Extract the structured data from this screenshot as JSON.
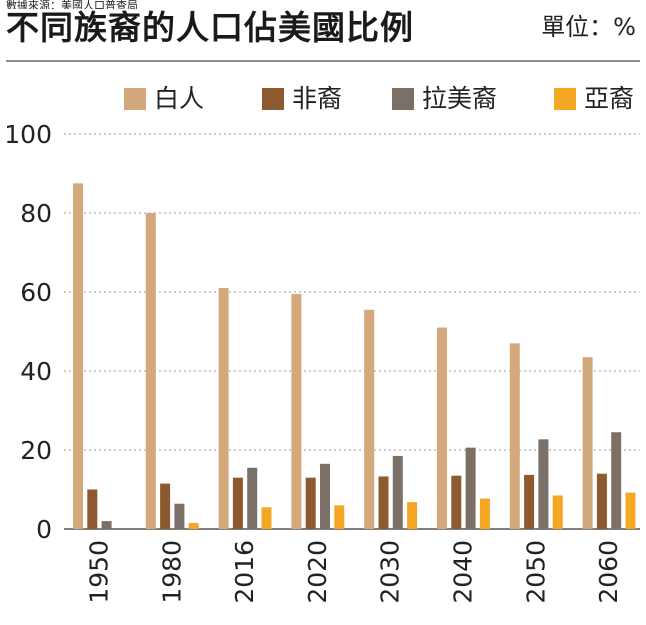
{
  "header": {
    "top_note": "數據來源：美國人口普查局",
    "title": "不同族裔的人口佔美國比例",
    "unit": "單位：%"
  },
  "chart_data": {
    "type": "bar",
    "title": "不同族裔的人口佔美國比例",
    "unit": "單位：%",
    "categories": [
      "1950",
      "1980",
      "2016",
      "2020",
      "2030",
      "2040",
      "2050",
      "2060"
    ],
    "series": [
      {
        "name": "白人",
        "color": "#d3a87a",
        "values": [
          87.5,
          80,
          61,
          59.5,
          55.5,
          51,
          47,
          43.5
        ]
      },
      {
        "name": "非裔",
        "color": "#8c5a2e",
        "values": [
          10,
          11.5,
          13,
          13,
          13.3,
          13.5,
          13.7,
          14
        ]
      },
      {
        "name": "拉美裔",
        "color": "#7b7067",
        "values": [
          2,
          6.4,
          15.5,
          16.5,
          18.5,
          20.6,
          22.7,
          24.5
        ]
      },
      {
        "name": "亞裔",
        "color": "#f5a623",
        "values": [
          0,
          1.5,
          5.5,
          6,
          6.8,
          7.7,
          8.5,
          9.2
        ]
      }
    ],
    "yticks": [
      0,
      20,
      40,
      60,
      80,
      100
    ],
    "ylim": [
      0,
      100
    ],
    "grid": true,
    "legend_position": "top"
  }
}
